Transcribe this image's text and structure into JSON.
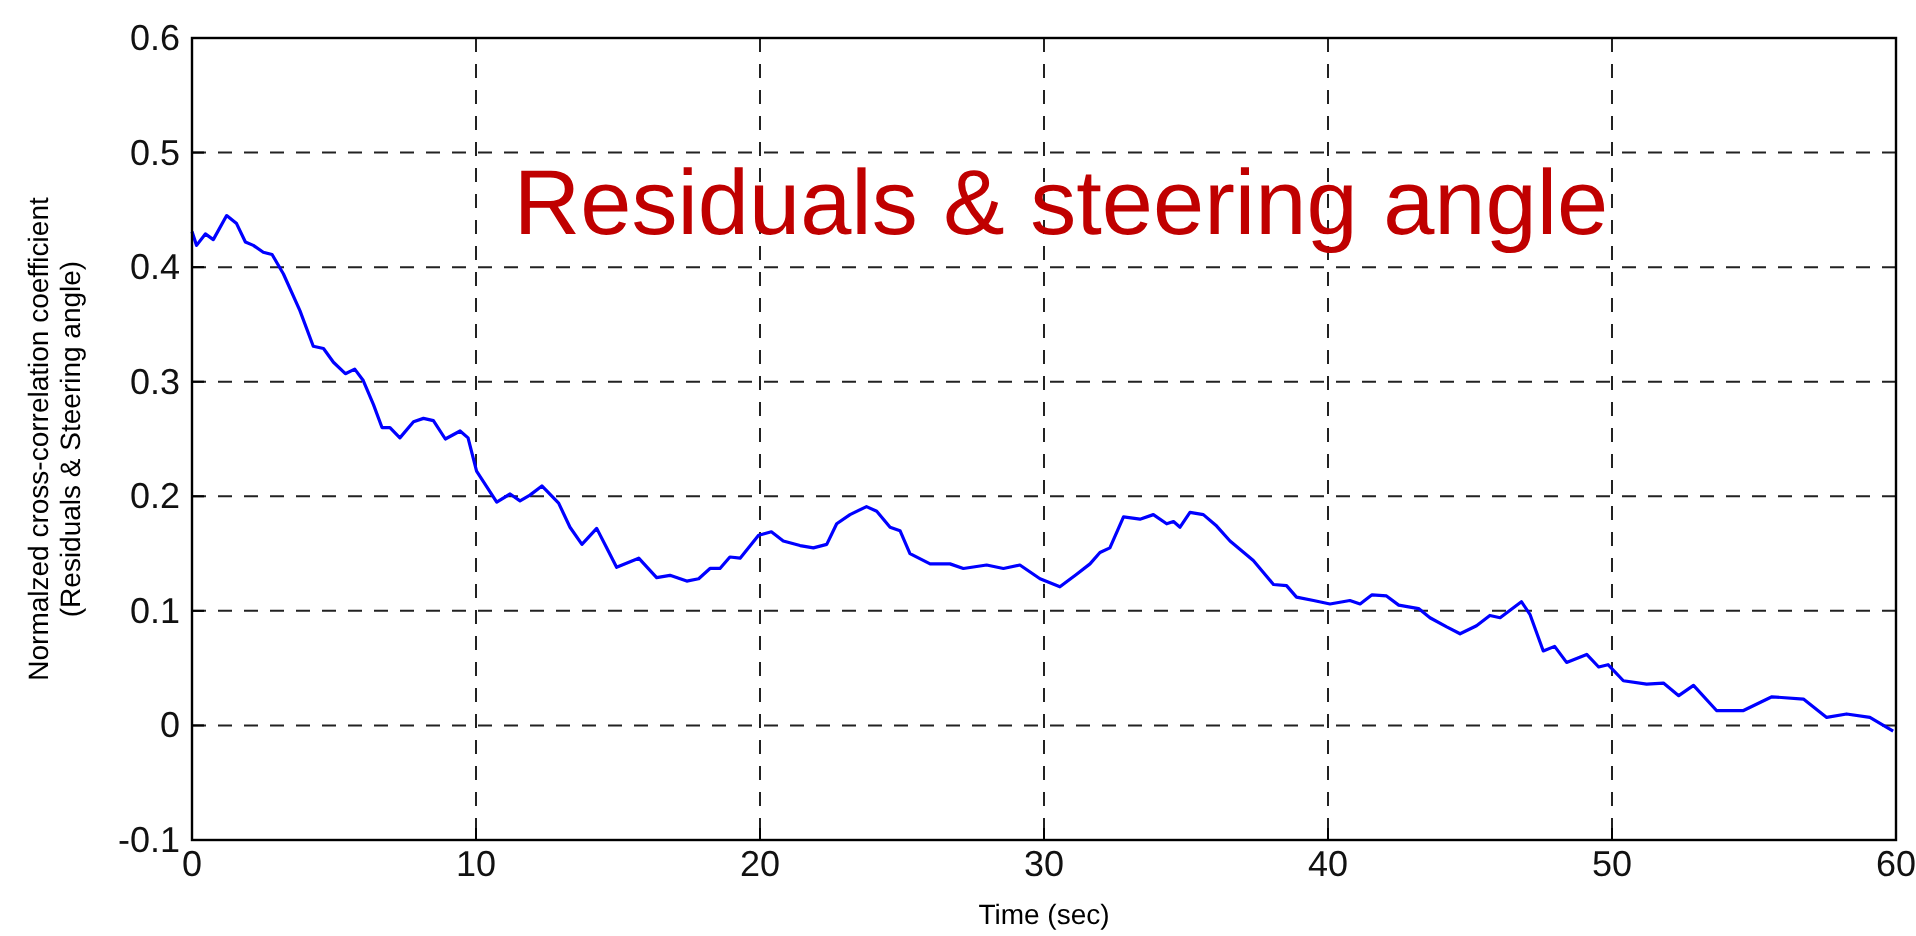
{
  "chart_data": {
    "type": "line",
    "title": "Residuals & steering angle",
    "xlabel": "Time (sec)",
    "ylabel": "Normalzed cross-correlation coefficient\n(Residuals & Steering angle)",
    "xlim": [
      0,
      60
    ],
    "xticks": [
      0,
      10,
      20,
      30,
      40,
      50,
      60
    ],
    "ylim": [
      -0.1,
      0.6
    ],
    "yticks": [
      -0.1,
      0,
      0.1,
      0.2,
      0.3,
      0.4,
      0.5,
      0.6
    ],
    "grid": true,
    "marker": "none",
    "line_style": "solid",
    "series": [
      {
        "color": "#0000ff",
        "x": [
          0,
          0.16,
          0.47,
          0.75,
          1.22,
          1.57,
          1.88,
          2.16,
          2.51,
          2.82,
          3.22,
          3.8,
          4.27,
          4.63,
          4.98,
          5.4,
          5.73,
          6.03,
          6.39,
          6.69,
          6.97,
          7.32,
          7.8,
          8.15,
          8.5,
          8.92,
          9.44,
          9.72,
          10.02,
          10.73,
          11.2,
          11.55,
          11.9,
          12.32,
          12.91,
          13.31,
          13.73,
          14.25,
          14.6,
          14.95,
          15.73,
          16.36,
          16.83,
          17.42,
          17.84,
          18.24,
          18.59,
          18.94,
          19.3,
          19.95,
          20.4,
          20.82,
          21.41,
          21.88,
          22.35,
          22.7,
          23.17,
          23.75,
          24.11,
          24.58,
          24.93,
          25.28,
          25.99,
          26.69,
          27.16,
          27.98,
          28.57,
          29.15,
          29.86,
          30.56,
          31.15,
          31.62,
          31.97,
          32.32,
          32.8,
          33.38,
          33.85,
          34.32,
          34.56,
          34.79,
          35.14,
          35.61,
          36.08,
          36.55,
          37.37,
          38.08,
          38.54,
          38.89,
          39.49,
          40.07,
          40.77,
          41.13,
          41.55,
          42.06,
          42.49,
          43.19,
          43.59,
          44.18,
          44.65,
          45.23,
          45.7,
          46.06,
          46.81,
          47.11,
          47.58,
          47.98,
          48.4,
          49.11,
          49.53,
          49.86,
          50.4,
          51.22,
          51.81,
          52.35,
          52.87,
          53.68,
          54.63,
          55.63,
          56.74,
          57.56,
          58.26,
          59.08,
          59.9
        ],
        "values": [
          0.431,
          0.419,
          0.429,
          0.424,
          0.445,
          0.438,
          0.422,
          0.419,
          0.413,
          0.411,
          0.394,
          0.362,
          0.331,
          0.329,
          0.317,
          0.307,
          0.311,
          0.301,
          0.28,
          0.26,
          0.26,
          0.251,
          0.265,
          0.268,
          0.266,
          0.25,
          0.257,
          0.251,
          0.222,
          0.195,
          0.202,
          0.196,
          0.201,
          0.209,
          0.194,
          0.173,
          0.158,
          0.172,
          0.155,
          0.138,
          0.146,
          0.129,
          0.131,
          0.126,
          0.128,
          0.137,
          0.137,
          0.147,
          0.146,
          0.166,
          0.169,
          0.161,
          0.157,
          0.155,
          0.158,
          0.176,
          0.184,
          0.191,
          0.187,
          0.173,
          0.17,
          0.15,
          0.141,
          0.141,
          0.137,
          0.14,
          0.137,
          0.14,
          0.128,
          0.121,
          0.132,
          0.141,
          0.151,
          0.155,
          0.182,
          0.18,
          0.184,
          0.176,
          0.178,
          0.173,
          0.186,
          0.184,
          0.174,
          0.161,
          0.144,
          0.123,
          0.122,
          0.112,
          0.109,
          0.106,
          0.109,
          0.106,
          0.114,
          0.113,
          0.105,
          0.102,
          0.094,
          0.086,
          0.08,
          0.087,
          0.096,
          0.094,
          0.108,
          0.097,
          0.065,
          0.069,
          0.055,
          0.062,
          0.051,
          0.053,
          0.039,
          0.036,
          0.037,
          0.026,
          0.035,
          0.013,
          0.013,
          0.025,
          0.023,
          0.007,
          0.01,
          0.007,
          -0.005
        ]
      }
    ]
  }
}
